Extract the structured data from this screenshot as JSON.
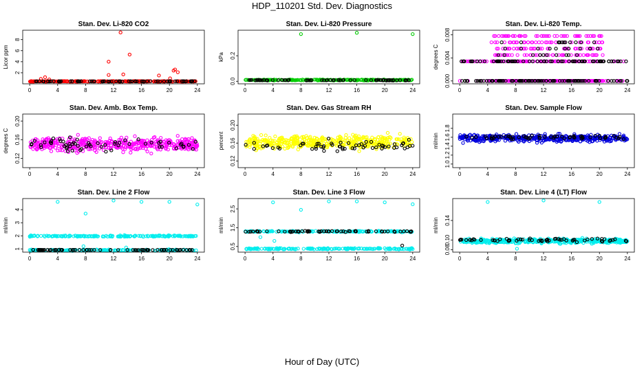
{
  "title": "HDP_110201  Std. Dev. Diagnostics",
  "xlabel": "Hour of Day (UTC)",
  "colors": {
    "red": "#ff0000",
    "green": "#00cc00",
    "magenta": "#ff00ff",
    "yellow": "#ffff00",
    "blue": "#0000dd",
    "cyan": "#00eeee",
    "black": "#000000"
  },
  "chart_data": [
    {
      "type": "scatter",
      "title": "Stan. Dev. Li-820 CO2",
      "ylabel": "Licor ppm",
      "xlim": [
        -1,
        25
      ],
      "xticks": [
        0,
        4,
        8,
        12,
        16,
        20,
        24
      ],
      "ylim": [
        0,
        9.7
      ],
      "yticks": [
        "2",
        "4",
        "6",
        "8"
      ],
      "ytick_values": [
        2,
        4,
        6,
        8
      ],
      "series": [
        {
          "name": "main",
          "color": "red",
          "base": 0.45,
          "spread": 0.08,
          "count": 260,
          "extra": [
            [
              1.6,
              0.9
            ],
            [
              2.2,
              1.2
            ],
            [
              2.8,
              0.8
            ],
            [
              11.3,
              4.0
            ],
            [
              11.3,
              1.6
            ],
            [
              13,
              9.3
            ],
            [
              14.3,
              5.3
            ],
            [
              13.4,
              1.7
            ],
            [
              18.5,
              1.5
            ],
            [
              20.6,
              2.4
            ],
            [
              20.8,
              2.6
            ],
            [
              21.2,
              2.1
            ],
            [
              20.1,
              1.0
            ]
          ]
        },
        {
          "name": "hourly",
          "color": "black",
          "base": 0.45,
          "spread": 0.05,
          "count": 70
        }
      ]
    },
    {
      "type": "scatter",
      "title": "Stan. Dev. Li-820 Pressure",
      "ylabel": "kPa",
      "xlim": [
        -1,
        25
      ],
      "xticks": [
        0,
        4,
        8,
        12,
        16,
        20,
        24
      ],
      "ylim": [
        -0.02,
        0.4
      ],
      "yticks": [
        "0.0",
        "0.2"
      ],
      "ytick_values": [
        0,
        0.2
      ],
      "series": [
        {
          "name": "main",
          "color": "green",
          "base": 0.01,
          "spread": 0.005,
          "count": 260,
          "extra": [
            [
              8,
              0.37
            ],
            [
              16,
              0.38
            ],
            [
              24,
              0.37
            ]
          ]
        },
        {
          "name": "hourly",
          "color": "black",
          "base": 0.008,
          "spread": 0.004,
          "count": 70
        }
      ]
    },
    {
      "type": "scatter",
      "title": "Stan. Dev. Li-820 Temp.",
      "ylabel": "degrees C",
      "xlim": [
        -1,
        25
      ],
      "xticks": [
        0,
        4,
        8,
        12,
        16,
        20,
        24
      ],
      "ylim": [
        -0.0005,
        0.0088
      ],
      "yticks": [
        "0.000",
        "0.004",
        "0.008"
      ],
      "ytick_values": [
        0,
        0.004,
        0.008
      ],
      "series": [
        {
          "name": "main",
          "color": "magenta",
          "levels": [
            0,
            0.0034,
            0.0045,
            0.0056,
            0.0067,
            0.0078
          ],
          "window": [
            4.5,
            20.5
          ],
          "count": 420
        },
        {
          "name": "hourly",
          "color": "black",
          "levels": [
            0,
            0.0034,
            0.0045,
            0.0056,
            0.0067
          ],
          "window": [
            5.5,
            20
          ],
          "count": 90
        }
      ]
    },
    {
      "type": "scatter",
      "title": "Stan. Dev. Amb. Box Temp.",
      "ylabel": "degrees C",
      "xlim": [
        -1,
        25
      ],
      "xticks": [
        0,
        4,
        8,
        12,
        16,
        20,
        24
      ],
      "ylim": [
        0.1,
        0.215
      ],
      "yticks": [
        "0.12",
        "0.16",
        "0.20"
      ],
      "ytick_values": [
        0.12,
        0.16,
        0.2
      ],
      "series": [
        {
          "name": "main",
          "color": "magenta",
          "base": 0.15,
          "spread": 0.022,
          "count": 420
        },
        {
          "name": "hourly",
          "color": "black",
          "base": 0.15,
          "spread": 0.02,
          "count": 60
        }
      ]
    },
    {
      "type": "scatter",
      "title": "Stan. Dev. Gas Stream RH",
      "ylabel": "percent",
      "xlim": [
        -1,
        25
      ],
      "xticks": [
        0,
        4,
        8,
        12,
        16,
        20,
        24
      ],
      "ylim": [
        0.105,
        0.225
      ],
      "yticks": [
        "0.12",
        "0.16",
        "0.20"
      ],
      "ytick_values": [
        0.12,
        0.16,
        0.2
      ],
      "series": [
        {
          "name": "main",
          "color": "yellow",
          "base": 0.162,
          "spread": 0.022,
          "count": 420
        },
        {
          "name": "hourly",
          "color": "black",
          "base": 0.155,
          "spread": 0.018,
          "count": 60
        }
      ]
    },
    {
      "type": "scatter",
      "title": "Stan. Dev. Sample Flow",
      "ylabel": "ml/min",
      "xlim": [
        -1,
        25
      ],
      "xticks": [
        0,
        4,
        8,
        12,
        16,
        20,
        24
      ],
      "ylim": [
        0.92,
        2.12
      ],
      "yticks": [
        "1.0",
        "1.2",
        "1.4",
        "1.6",
        "1.8"
      ],
      "ytick_values": [
        1.0,
        1.2,
        1.4,
        1.6,
        1.8
      ],
      "series": [
        {
          "name": "main",
          "color": "blue",
          "base": 1.58,
          "spread": 0.12,
          "count": 420
        },
        {
          "name": "hourly",
          "color": "black",
          "base": 1.6,
          "spread": 0.07,
          "count": 60
        }
      ]
    },
    {
      "type": "scatter",
      "title": "Stan. Dev. Line 2 Flow",
      "ylabel": "ml/min",
      "xlim": [
        -1,
        25
      ],
      "xticks": [
        0,
        4,
        8,
        12,
        16,
        20,
        24
      ],
      "ylim": [
        0.75,
        4.85
      ],
      "yticks": [
        "1",
        "2",
        "3",
        "4"
      ],
      "ytick_values": [
        1,
        2,
        3,
        4
      ],
      "series": [
        {
          "name": "main",
          "color": "cyan",
          "bands": [
            1.98,
            0.9
          ],
          "spread": 0.08,
          "count": 360,
          "extra": [
            [
              4,
              4.6
            ],
            [
              8,
              3.7
            ],
            [
              12,
              4.7
            ],
            [
              16,
              4.6
            ],
            [
              20,
              4.6
            ],
            [
              24,
              4.4
            ],
            [
              7.7,
              1.2
            ],
            [
              13.8,
              1.1
            ]
          ]
        },
        {
          "name": "hourly",
          "color": "black",
          "base": 0.92,
          "spread": 0.02,
          "count": 70
        }
      ]
    },
    {
      "type": "scatter",
      "title": "Stan. Dev. Line 3 Flow",
      "ylabel": "ml/min",
      "xlim": [
        -1,
        25
      ],
      "xticks": [
        0,
        4,
        8,
        12,
        16,
        20,
        24
      ],
      "ylim": [
        0.2,
        3.05
      ],
      "yticks": [
        "0.5",
        "1.5",
        "2.5"
      ],
      "ytick_values": [
        0.5,
        1.5,
        2.5
      ],
      "series": [
        {
          "name": "main",
          "color": "cyan",
          "bands": [
            1.3,
            0.38
          ],
          "spread": 0.05,
          "count": 360,
          "extra": [
            [
              4,
              2.85
            ],
            [
              8,
              2.45
            ],
            [
              12,
              2.9
            ],
            [
              16,
              2.9
            ],
            [
              20,
              2.85
            ],
            [
              24,
              2.75
            ],
            [
              2.2,
              1.0
            ],
            [
              4.2,
              0.8
            ]
          ]
        },
        {
          "name": "hourly",
          "color": "black",
          "base": 1.3,
          "spread": 0.04,
          "count": 65,
          "extra": [
            [
              22.5,
              0.55
            ]
          ]
        }
      ]
    },
    {
      "type": "scatter",
      "title": "Stan. Dev. Line 4 (LT) Flow",
      "ylabel": "ml/min",
      "xlim": [
        -1,
        25
      ],
      "xticks": [
        0,
        4,
        8,
        12,
        16,
        20,
        24
      ],
      "ylim": [
        0.075,
        0.185
      ],
      "yticks": [
        "0.08",
        "0.10",
        "0.14"
      ],
      "ytick_values": [
        0.08,
        0.1,
        0.14
      ],
      "series": [
        {
          "name": "main",
          "color": "cyan",
          "base": 0.098,
          "spread": 0.007,
          "count": 420,
          "extra": [
            [
              4,
              0.178
            ],
            [
              12,
              0.181
            ],
            [
              20,
              0.178
            ],
            [
              8.2,
              0.082
            ]
          ]
        },
        {
          "name": "hourly",
          "color": "black",
          "base": 0.1,
          "spread": 0.005,
          "count": 60
        }
      ]
    }
  ]
}
